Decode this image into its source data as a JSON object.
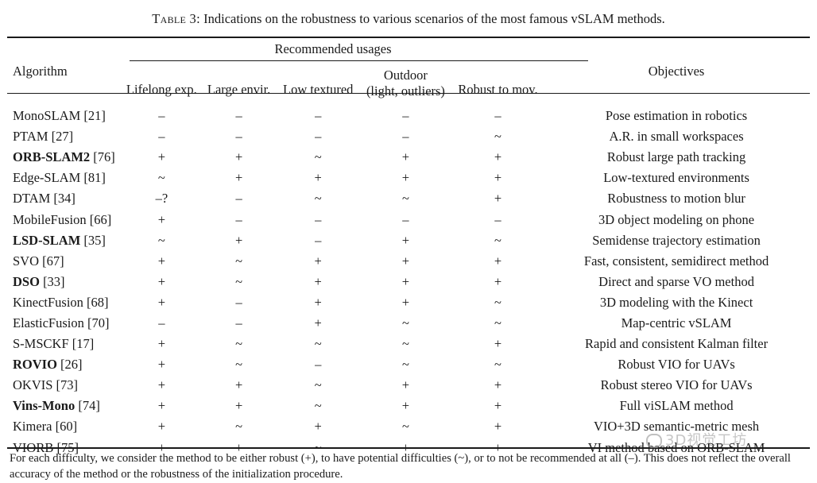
{
  "caption": {
    "label": "Table 3:",
    "text": "Indications on the robustness to various scenarios of the most famous vSLAM methods."
  },
  "header": {
    "algorithm": "Algorithm",
    "group": "Recommended usages",
    "objectives": "Objectives",
    "columns": [
      "Lifelong exp.",
      "Large envir.",
      "Low textured",
      "Outdoor",
      "Robust to mov."
    ],
    "outdoor_sub": "(light, outliers)"
  },
  "rows": [
    {
      "name": "MonoSLAM",
      "ref": " [21]",
      "bold": false,
      "marks": [
        "–",
        "–",
        "–",
        "–",
        "–"
      ],
      "objective": "Pose estimation in robotics"
    },
    {
      "name": "PTAM",
      "ref": " [27]",
      "bold": false,
      "marks": [
        "–",
        "–",
        "–",
        "–",
        "~"
      ],
      "objective": "A.R. in small workspaces"
    },
    {
      "name": "ORB-SLAM2",
      "ref": " [76]",
      "bold": true,
      "marks": [
        "+",
        "+",
        "~",
        "+",
        "+"
      ],
      "objective": "Robust large path tracking"
    },
    {
      "name": "Edge-SLAM",
      "ref": " [81]",
      "bold": false,
      "marks": [
        "~",
        "+",
        "+",
        "+",
        "+"
      ],
      "objective": "Low-textured environments"
    },
    {
      "name": "DTAM",
      "ref": " [34]",
      "bold": false,
      "marks": [
        "–?",
        "–",
        "~",
        "~",
        "+"
      ],
      "objective": "Robustness to motion blur"
    },
    {
      "name": "MobileFusion",
      "ref": " [66]",
      "bold": false,
      "marks": [
        "+",
        "–",
        "–",
        "–",
        "–"
      ],
      "objective": "3D object modeling on phone"
    },
    {
      "name": "LSD-SLAM",
      "ref": " [35]",
      "bold": true,
      "marks": [
        "~",
        "+",
        "–",
        "+",
        "~"
      ],
      "objective": "Semidense trajectory estimation"
    },
    {
      "name": "SVO",
      "ref": " [67]",
      "bold": false,
      "marks": [
        "+",
        "~",
        "+",
        "+",
        "+"
      ],
      "objective": "Fast, consistent, semidirect method"
    },
    {
      "name": "DSO",
      "ref": " [33]",
      "bold": true,
      "marks": [
        "+",
        "~",
        "+",
        "+",
        "+"
      ],
      "objective": "Direct and sparse VO method"
    },
    {
      "name": "KinectFusion",
      "ref": " [68]",
      "bold": false,
      "marks": [
        "+",
        "–",
        "+",
        "+",
        "~"
      ],
      "objective": "3D modeling with the Kinect"
    },
    {
      "name": "ElasticFusion",
      "ref": " [70]",
      "bold": false,
      "marks": [
        "–",
        "–",
        "+",
        "~",
        "~"
      ],
      "objective": "Map-centric vSLAM"
    },
    {
      "name": "S-MSCKF",
      "ref": " [17]",
      "bold": false,
      "marks": [
        "+",
        "~",
        "~",
        "~",
        "+"
      ],
      "objective": "Rapid and consistent Kalman filter"
    },
    {
      "name": "ROVIO",
      "ref": " [26]",
      "bold": true,
      "marks": [
        "+",
        "~",
        "–",
        "~",
        "~"
      ],
      "objective": "Robust VIO for UAVs"
    },
    {
      "name": "OKVIS",
      "ref": " [73]",
      "bold": false,
      "marks": [
        "+",
        "+",
        "~",
        "+",
        "+"
      ],
      "objective": "Robust stereo VIO for UAVs"
    },
    {
      "name": "Vins-Mono",
      "ref": " [74]",
      "bold": true,
      "marks": [
        "+",
        "+",
        "~",
        "+",
        "+"
      ],
      "objective": "Full viSLAM method"
    },
    {
      "name": "Kimera",
      "ref": " [60]",
      "bold": false,
      "marks": [
        "+",
        "~",
        "+",
        "~",
        "+"
      ],
      "objective": "VIO+3D semantic-metric mesh"
    },
    {
      "name": "VIORB",
      "ref": " [75]",
      "bold": false,
      "marks": [
        "+",
        "+",
        "~",
        "+",
        "+"
      ],
      "objective": "VI method based on ORB-SLAM"
    }
  ],
  "footnote": "For each difficulty, we consider the method to be either robust (+), to have potential difficulties (~), or to not be recommended at all (–). This does not reflect the overall accuracy of the method or the robustness of the initialization procedure.",
  "watermark": "3D视觉工坊"
}
